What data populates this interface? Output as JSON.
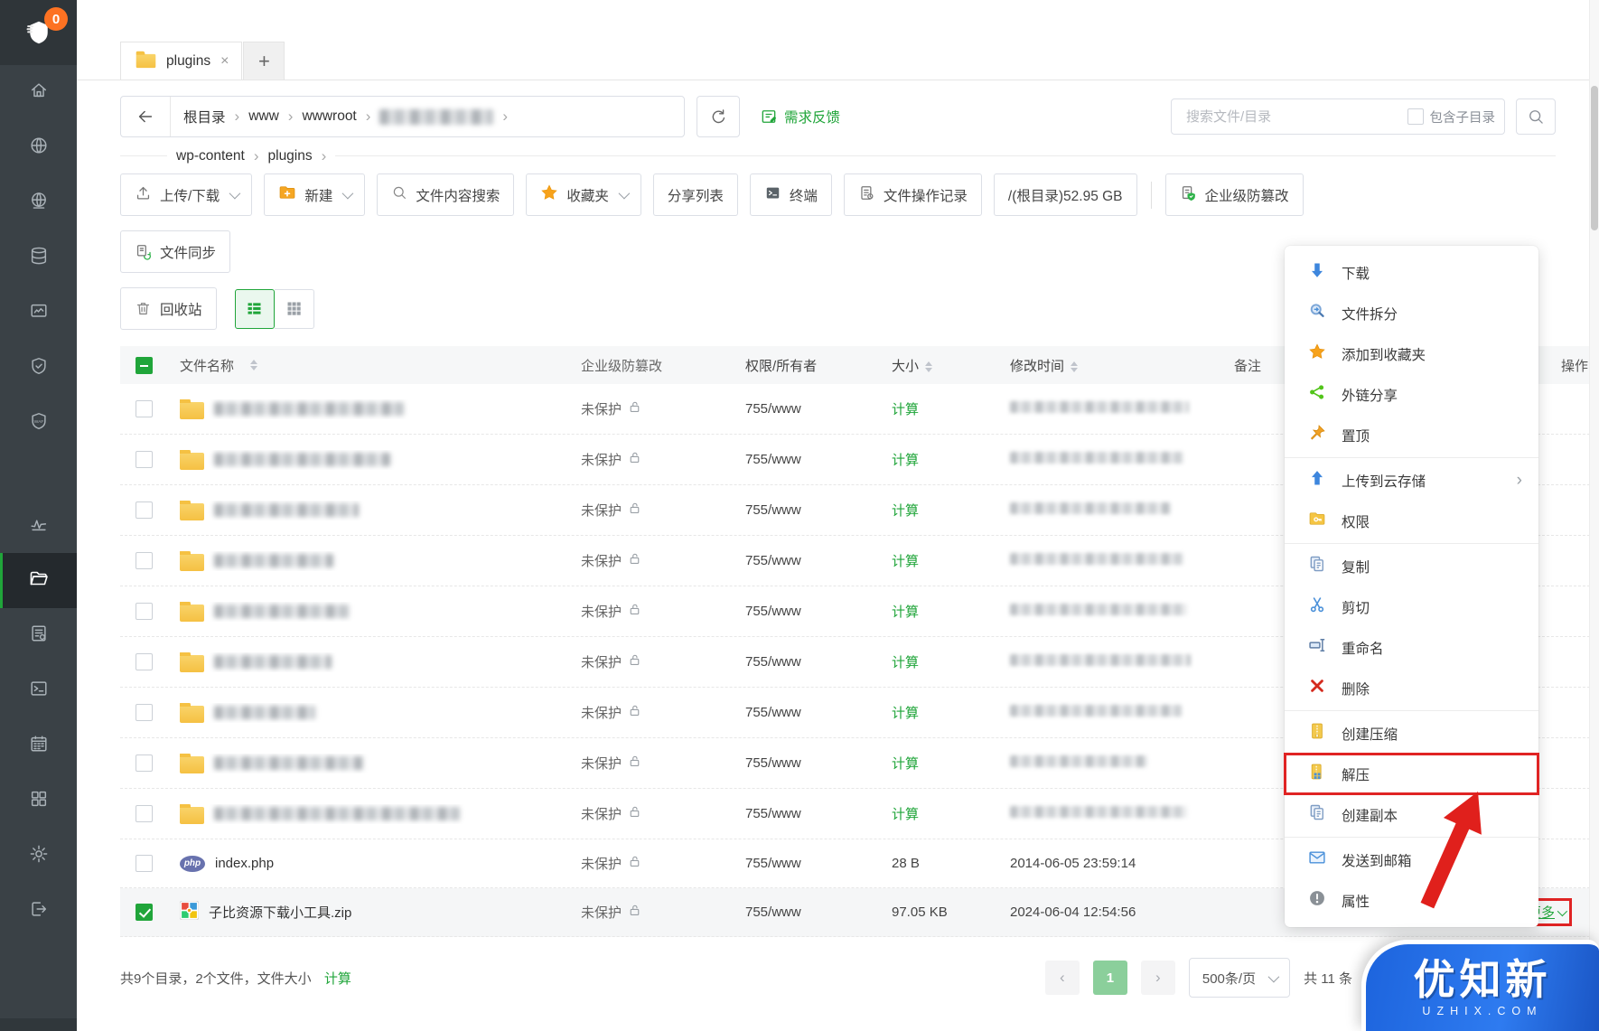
{
  "sidebar": {
    "badge": "0",
    "items": [
      {
        "icon": "home",
        "name": "sidebar-item-home"
      },
      {
        "icon": "globe",
        "name": "sidebar-item-websites"
      },
      {
        "icon": "globe2",
        "name": "sidebar-item-network"
      },
      {
        "icon": "database",
        "name": "sidebar-item-database"
      },
      {
        "icon": "monitor",
        "name": "sidebar-item-monitor"
      },
      {
        "icon": "shield",
        "name": "sidebar-item-security"
      },
      {
        "icon": "waf",
        "name": "sidebar-item-waf"
      },
      {
        "icon": "pulse",
        "name": "sidebar-item-load",
        "gap": true
      },
      {
        "icon": "folder",
        "name": "sidebar-item-files",
        "active": true
      },
      {
        "icon": "log",
        "name": "sidebar-item-logs"
      },
      {
        "icon": "terminal",
        "name": "sidebar-item-terminal"
      },
      {
        "icon": "calendar",
        "name": "sidebar-item-cron"
      },
      {
        "icon": "apps",
        "name": "sidebar-item-appstore"
      },
      {
        "icon": "gear",
        "name": "sidebar-item-settings"
      },
      {
        "icon": "logout",
        "name": "sidebar-item-logout"
      }
    ]
  },
  "tabs": {
    "active_label": "plugins",
    "add_label": "+"
  },
  "path": {
    "crumbs": [
      "根目录",
      "www",
      "wwwroot"
    ],
    "crumbs2": [
      "wp-content",
      "plugins"
    ],
    "feedback": "需求反馈"
  },
  "search": {
    "placeholder": "搜索文件/目录",
    "include_sub": "包含子目录"
  },
  "toolbar": {
    "buttons": [
      {
        "label": "上传/下载",
        "icon": "upload",
        "caret": true,
        "name": "upload-download-button"
      },
      {
        "label": "新建",
        "icon": "folderplus",
        "caret": true,
        "name": "new-button"
      },
      {
        "label": "文件内容搜索",
        "icon": "search",
        "name": "content-search-button"
      },
      {
        "label": "收藏夹",
        "icon": "star",
        "caret": true,
        "name": "favorites-button"
      },
      {
        "label": "分享列表",
        "name": "share-list-button"
      },
      {
        "label": "终端",
        "icon": "terminal",
        "name": "terminal-button"
      },
      {
        "label": "文件操作记录",
        "icon": "docops",
        "name": "file-ops-log-button"
      },
      {
        "label": "/(根目录)52.95 GB",
        "name": "disk-usage-button"
      },
      {
        "divider": true
      },
      {
        "label": "企业级防篡改",
        "icon": "shieldfile",
        "name": "tamper-proof-button"
      }
    ],
    "sync_label": "文件同步",
    "recycle_label": "回收站"
  },
  "table": {
    "headers": [
      "文件名称",
      "企业级防篡改",
      "权限/所有者",
      "大小",
      "修改时间",
      "备注",
      "操作"
    ],
    "protect_label": "未保护",
    "perm_value": "755/www",
    "calc_label": "计算",
    "folder_rows": [
      {
        "name_w": 210,
        "time_w": 198
      },
      {
        "name_w": 195,
        "time_w": 192
      },
      {
        "name_w": 160,
        "time_w": 178
      },
      {
        "name_w": 132,
        "time_w": 192
      },
      {
        "name_w": 150,
        "time_w": 196
      },
      {
        "name_w": 130,
        "time_w": 200
      },
      {
        "name_w": 112,
        "time_w": 190
      },
      {
        "name_w": 165,
        "time_w": 152
      },
      {
        "name_w": 272,
        "time_w": 196
      }
    ],
    "file_rows": [
      {
        "type": "php",
        "name": "index.php",
        "size": "28 B",
        "time": "2014-06-05 23:59:14"
      },
      {
        "type": "zip",
        "name": "子比资源下载小工具.zip",
        "size": "97.05 KB",
        "time": "2024-06-04 12:54:56",
        "checked": true,
        "more": "更多"
      }
    ]
  },
  "context_menu": {
    "items": [
      {
        "label": "下载",
        "icon": "download"
      },
      {
        "label": "文件拆分",
        "icon": "split"
      },
      {
        "label": "添加到收藏夹",
        "icon": "star"
      },
      {
        "label": "外链分享",
        "icon": "share"
      },
      {
        "label": "置顶",
        "icon": "pin",
        "divider_after": true
      },
      {
        "label": "上传到云存储",
        "icon": "uploadarr",
        "submenu": true
      },
      {
        "label": "权限",
        "icon": "perm",
        "divider_after": true
      },
      {
        "label": "复制",
        "icon": "copy"
      },
      {
        "label": "剪切",
        "icon": "cut"
      },
      {
        "label": "重命名",
        "icon": "rename"
      },
      {
        "label": "删除",
        "icon": "del",
        "divider_after": true
      },
      {
        "label": "创建压缩",
        "icon": "compress"
      },
      {
        "label": "解压",
        "icon": "extract",
        "highlight": true
      },
      {
        "label": "创建副本",
        "icon": "copy",
        "divider_after": true
      },
      {
        "label": "发送到邮箱",
        "icon": "mail"
      },
      {
        "label": "属性",
        "icon": "info"
      }
    ]
  },
  "footer": {
    "summary": "共9个目录，2个文件，文件大小",
    "calc_label": "计算",
    "page_current": "1",
    "per_page": "500条/页",
    "total": "共 11 条"
  },
  "watermark": {
    "title": "优知新",
    "sub": "UZHIX.COM"
  }
}
